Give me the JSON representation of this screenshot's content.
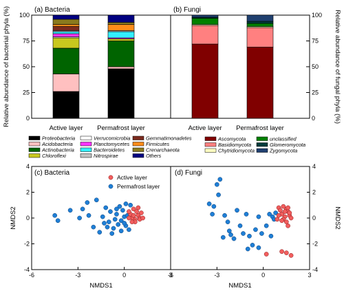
{
  "colors": {
    "Proteobacteria": "#000000",
    "Acidobacteria": "#ffc0c0",
    "Actinobacteria": "#006400",
    "Chloroflexi": "#c8c81e",
    "Verrucomicrobia": "#ffffff",
    "Planctomycetes": "#ff33ff",
    "Bacteroidetes": "#33f0ff",
    "Nitrospirae": "#c0c0c0",
    "Gemmatimonadetes": "#7b2a1e",
    "Firmicutes": "#ff8c1a",
    "Crenarchaeota": "#8a7a1e",
    "Others": "#000080",
    "Ascomycota": "#800000",
    "Basidiomycota": "#ff8080",
    "Chytridiomycota": "#ffffc0",
    "unclassified": "#008000",
    "Glomeromycota": "#003c3c",
    "Zygomycota": "#1f3f6f",
    "active": "#f25e5e",
    "permafrost": "#1f7fd6"
  },
  "chart_data": [
    {
      "type": "bar",
      "stacked": true,
      "title": "(a) Bacteria",
      "ylabel": "Relative abundance of bacterial phyla (%)",
      "ylim": [
        0,
        100
      ],
      "yticks": [
        "0",
        "25",
        "50",
        "75",
        "100"
      ],
      "categories": [
        "Active layer",
        "Permafrost layer"
      ],
      "series": [
        {
          "name": "Proteobacteria",
          "values": [
            26,
            48
          ]
        },
        {
          "name": "Acidobacteria",
          "values": [
            17,
            2
          ]
        },
        {
          "name": "Actinobacteria",
          "values": [
            25,
            25
          ]
        },
        {
          "name": "Chloroflexi",
          "values": [
            10,
            2
          ]
        },
        {
          "name": "Verrucomicrobia",
          "values": [
            1,
            0
          ]
        },
        {
          "name": "Planctomycetes",
          "values": [
            3,
            1
          ]
        },
        {
          "name": "Bacteroidetes",
          "values": [
            2,
            6
          ]
        },
        {
          "name": "Nitrospirae",
          "values": [
            1,
            1
          ]
        },
        {
          "name": "Gemmatimonadetes",
          "values": [
            4,
            0
          ]
        },
        {
          "name": "Firmicutes",
          "values": [
            2,
            6
          ]
        },
        {
          "name": "Crenarchaeota",
          "values": [
            5,
            2
          ]
        },
        {
          "name": "Others",
          "values": [
            4,
            7
          ]
        }
      ]
    },
    {
      "type": "bar",
      "stacked": true,
      "title": "(b) Fungi",
      "ylabel": "Relative abundance of fungal phyla (%)",
      "ylim": [
        0,
        100
      ],
      "yticks": [
        "0",
        "25",
        "50",
        "75",
        "100"
      ],
      "categories": [
        "Active layer",
        "Permafrost layer"
      ],
      "series": [
        {
          "name": "Ascomycota",
          "values": [
            72,
            69
          ]
        },
        {
          "name": "Basidiomycota",
          "values": [
            18,
            19
          ]
        },
        {
          "name": "Chytridiomycota",
          "values": [
            1,
            1
          ]
        },
        {
          "name": "unclassified",
          "values": [
            6,
            3
          ]
        },
        {
          "name": "Glomeromycota",
          "values": [
            1,
            2
          ]
        },
        {
          "name": "Zygomycota",
          "values": [
            2,
            6
          ]
        }
      ]
    },
    {
      "type": "scatter",
      "title": "(c) Bacteria",
      "xlabel": "NMDS1",
      "ylabel": "NMDS2",
      "xlim": [
        -6,
        3
      ],
      "ylim": [
        -4,
        4
      ],
      "xticks": [
        "-6",
        "-3",
        "0",
        "3"
      ],
      "yticks": [
        "-4",
        "-2",
        "0",
        "2",
        "4"
      ],
      "series": [
        {
          "name": "Active layer",
          "points": [
            [
              0.6,
              0.7
            ],
            [
              0.8,
              0.5
            ],
            [
              0.9,
              0.2
            ],
            [
              1.0,
              0.0
            ],
            [
              0.7,
              -0.1
            ],
            [
              0.5,
              0.0
            ],
            [
              0.4,
              0.3
            ],
            [
              0.3,
              0.5
            ],
            [
              1.1,
              0.4
            ],
            [
              0.9,
              0.8
            ],
            [
              0.7,
              -0.3
            ],
            [
              1.0,
              -0.1
            ],
            [
              0.5,
              -0.3
            ],
            [
              0.6,
              0.2
            ],
            [
              0.3,
              0.0
            ],
            [
              1.2,
              0.0
            ]
          ]
        },
        {
          "name": "Permafrost layer",
          "points": [
            [
              -4.5,
              0.2
            ],
            [
              -4.3,
              -0.2
            ],
            [
              -3.5,
              0.6
            ],
            [
              -2.9,
              0.0
            ],
            [
              -2.7,
              0.7
            ],
            [
              -2.4,
              1.2
            ],
            [
              -2.3,
              0.2
            ],
            [
              -1.8,
              1.4
            ],
            [
              -1.6,
              -1.1
            ],
            [
              -1.4,
              0.1
            ],
            [
              -1.2,
              0.8
            ],
            [
              -1.1,
              -0.7
            ],
            [
              -1.0,
              -0.3
            ],
            [
              -0.9,
              0.5
            ],
            [
              -0.8,
              -1.2
            ],
            [
              -0.6,
              -0.1
            ],
            [
              -0.5,
              0.3
            ],
            [
              -0.4,
              -0.5
            ],
            [
              -0.3,
              0.9
            ],
            [
              -0.2,
              -0.2
            ],
            [
              -0.1,
              0.6
            ],
            [
              0.0,
              0.1
            ],
            [
              0.1,
              -0.6
            ],
            [
              0.2,
              0.2
            ],
            [
              0.3,
              -0.9
            ],
            [
              0.4,
              1.0
            ],
            [
              -0.7,
              -0.8
            ],
            [
              -2.0,
              -0.7
            ],
            [
              -0.2,
              -1.0
            ],
            [
              0.0,
              -0.4
            ],
            [
              0.1,
              1.1
            ],
            [
              -1.3,
              -0.4
            ],
            [
              -0.5,
              0.7
            ]
          ]
        }
      ]
    },
    {
      "type": "scatter",
      "title": "(d) Fungi",
      "xlabel": "NMDS1",
      "ylabel": "NMDS2",
      "xlim": [
        -6,
        3
      ],
      "ylim": [
        -4,
        4
      ],
      "xticks": [
        "-6",
        "-3",
        "0",
        "3"
      ],
      "yticks": [
        "-4",
        "-2",
        "0",
        "2",
        "4"
      ],
      "series": [
        {
          "name": "Active layer",
          "points": [
            [
              1.0,
              0.8
            ],
            [
              1.3,
              0.9
            ],
            [
              1.5,
              0.7
            ],
            [
              1.6,
              0.5
            ],
            [
              1.2,
              0.3
            ],
            [
              1.4,
              0.1
            ],
            [
              1.7,
              0.2
            ],
            [
              1.8,
              0.0
            ],
            [
              1.3,
              -0.1
            ],
            [
              1.5,
              -0.3
            ],
            [
              1.6,
              -0.6
            ],
            [
              1.1,
              0.6
            ],
            [
              1.4,
              0.5
            ],
            [
              1.7,
              0.4
            ],
            [
              1.2,
              -0.2
            ],
            [
              1.0,
              0.2
            ],
            [
              0.9,
              -0.1
            ],
            [
              0.2,
              -2.8
            ],
            [
              1.2,
              -2.6
            ],
            [
              1.5,
              -2.7
            ],
            [
              1.8,
              -2.9
            ],
            [
              1.6,
              0.8
            ]
          ]
        },
        {
          "name": "Permafrost layer",
          "points": [
            [
              -3.5,
              1.1
            ],
            [
              -3.3,
              0.3
            ],
            [
              -3.2,
              0.9
            ],
            [
              -3.0,
              2.6
            ],
            [
              -2.9,
              1.8
            ],
            [
              -2.8,
              3.0
            ],
            [
              -2.5,
              0.2
            ],
            [
              -2.3,
              -0.3
            ],
            [
              -2.2,
              -1.0
            ],
            [
              -1.9,
              -1.6
            ],
            [
              -1.7,
              0.6
            ],
            [
              -1.5,
              -0.6
            ],
            [
              -1.3,
              -1.2
            ],
            [
              -1.1,
              0.3
            ],
            [
              -0.9,
              -1.4
            ],
            [
              -0.7,
              -2.1
            ],
            [
              -0.5,
              -0.9
            ],
            [
              -0.3,
              0.1
            ],
            [
              -0.1,
              -1.2
            ],
            [
              0.2,
              -0.6
            ],
            [
              0.4,
              0.3
            ],
            [
              0.6,
              0.1
            ],
            [
              0.8,
              0.4
            ],
            [
              -2.6,
              -1.5
            ],
            [
              -1.0,
              -2.4
            ],
            [
              0.5,
              -1.4
            ],
            [
              -0.3,
              -2.3
            ],
            [
              -2.1,
              -1.3
            ],
            [
              0.7,
              -0.1
            ]
          ]
        }
      ]
    }
  ],
  "legend_a_items": [
    "Proteobacteria",
    "Acidobacteria",
    "Actinobacteria",
    "Chloroflexi",
    "Verrucomicrobia",
    "Planctomycetes",
    "Bacteroidetes",
    "Nitrospirae",
    "Gemmatimonadetes",
    "Firmicutes",
    "Crenarchaeota",
    "Others"
  ],
  "legend_b_items": [
    "Ascomycota",
    "Basidiomycota",
    "Chytridiomycota",
    "unclassified",
    "Glomeromycota",
    "Zygomycota"
  ]
}
